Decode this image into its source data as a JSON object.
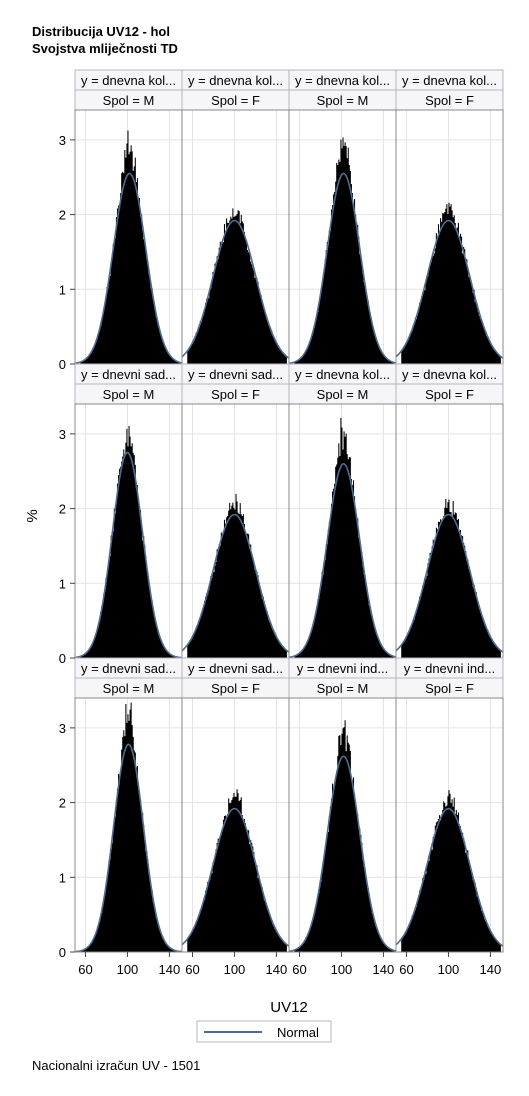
{
  "title": "Distribucija UV12 - hol",
  "subtitle": "Svojstva mliječnosti TD",
  "footnote": "Nacionalni izračun UV - 1501",
  "chart_data": {
    "type": "histogram-panel",
    "xlabel": "UV12",
    "ylabel": "%",
    "xlim": [
      50,
      152
    ],
    "ylim": [
      0,
      3.4
    ],
    "x_ticks": [
      60,
      100,
      140
    ],
    "y_ticks": [
      0,
      1,
      2,
      3
    ],
    "grid": true,
    "legend": {
      "position": "bottom",
      "entries": [
        {
          "name": "Normal",
          "color": "#4f6d8f"
        }
      ]
    },
    "bar_color": "#000000",
    "curve_color": "#4f6d8f",
    "panels": [
      {
        "row": 0,
        "col": 0,
        "y_label": "y = dnevna kol...",
        "spol": "Spol = M",
        "mean": 102,
        "sd": 15.5,
        "peak_pct": 2.55,
        "hist_peak_pct": 3.05
      },
      {
        "row": 0,
        "col": 1,
        "y_label": "y = dnevna kol...",
        "spol": "Spol = F",
        "mean": 100,
        "sd": 20.5,
        "peak_pct": 1.92,
        "hist_peak_pct": 2.08
      },
      {
        "row": 0,
        "col": 2,
        "y_label": "y = dnevna kol...",
        "spol": "Spol = M",
        "mean": 102,
        "sd": 15.5,
        "peak_pct": 2.55,
        "hist_peak_pct": 3.15
      },
      {
        "row": 0,
        "col": 3,
        "y_label": "y = dnevna kol...",
        "spol": "Spol = F",
        "mean": 100,
        "sd": 20.5,
        "peak_pct": 1.92,
        "hist_peak_pct": 2.12
      },
      {
        "row": 1,
        "col": 0,
        "y_label": "y = dnevni sad...",
        "spol": "Spol = M",
        "mean": 100,
        "sd": 14.5,
        "peak_pct": 2.75,
        "hist_peak_pct": 3.08
      },
      {
        "row": 1,
        "col": 1,
        "y_label": "y = dnevni sad...",
        "spol": "Spol = F",
        "mean": 100,
        "sd": 20.5,
        "peak_pct": 1.92,
        "hist_peak_pct": 2.12
      },
      {
        "row": 1,
        "col": 2,
        "y_label": "y = dnevna kol...",
        "spol": "Spol = M",
        "mean": 102,
        "sd": 15.5,
        "peak_pct": 2.6,
        "hist_peak_pct": 3.18
      },
      {
        "row": 1,
        "col": 3,
        "y_label": "y = dnevna kol...",
        "spol": "Spol = F",
        "mean": 100,
        "sd": 20.5,
        "peak_pct": 1.92,
        "hist_peak_pct": 2.1
      },
      {
        "row": 2,
        "col": 0,
        "y_label": "y = dnevni sad...",
        "spol": "Spol = M",
        "mean": 101,
        "sd": 14.2,
        "peak_pct": 2.78,
        "hist_peak_pct": 3.33
      },
      {
        "row": 2,
        "col": 1,
        "y_label": "y = dnevni sad...",
        "spol": "Spol = F",
        "mean": 100,
        "sd": 20.5,
        "peak_pct": 1.92,
        "hist_peak_pct": 2.15
      },
      {
        "row": 2,
        "col": 2,
        "y_label": "y = dnevni ind...",
        "spol": "Spol = M",
        "mean": 102,
        "sd": 15.5,
        "peak_pct": 2.62,
        "hist_peak_pct": 3.05
      },
      {
        "row": 2,
        "col": 3,
        "y_label": "y = dnevni ind...",
        "spol": "Spol = F",
        "mean": 100,
        "sd": 20.5,
        "peak_pct": 1.92,
        "hist_peak_pct": 2.08
      }
    ]
  }
}
